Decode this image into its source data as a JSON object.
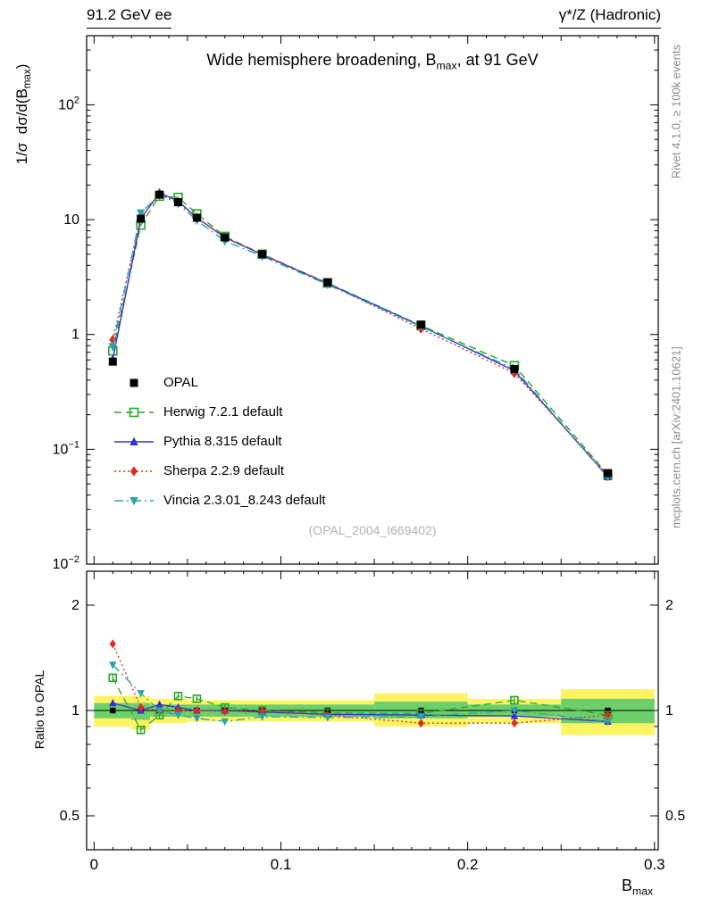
{
  "header": {
    "left": "91.2 GeV ee",
    "right": "γ*/Z (Hadronic)"
  },
  "plot_title": {
    "pre": "Wide hemisphere broadening, B",
    "sub": "max",
    "post": ", at 91 GeV"
  },
  "axes": {
    "main_ylabel": {
      "pre": "1/σ  dσ/d(B",
      "sub": "max",
      "post": ")"
    },
    "ratio_ylabel": "Ratio to OPAL",
    "xlabel": {
      "pre": "B",
      "sub": "max"
    }
  },
  "side_notes": {
    "rivet": "Rivet 4.1.0, ≥ 100k events",
    "mcplots": "mcplots.cern.ch [arXiv:2401.10621]"
  },
  "watermark": "(OPAL_2004_I669402)",
  "chart_data": {
    "type": "line",
    "title": "Wide hemisphere broadening, B_max, at 91 GeV",
    "xlabel": "B_max",
    "ylabel_main": "1/σ dσ/d(B_max)",
    "ylabel_ratio": "Ratio to OPAL",
    "x": [
      0.01,
      0.025,
      0.035,
      0.045,
      0.055,
      0.07,
      0.09,
      0.125,
      0.175,
      0.225,
      0.275
    ],
    "bin_edges": [
      0,
      0.02,
      0.03,
      0.04,
      0.05,
      0.06,
      0.08,
      0.1,
      0.15,
      0.2,
      0.25,
      0.3
    ],
    "xlim": [
      -0.004,
      0.302
    ],
    "xticks": [
      {
        "v": 0,
        "label": "0"
      },
      {
        "v": 0.1,
        "label": "0.1"
      },
      {
        "v": 0.2,
        "label": "0.2"
      },
      {
        "v": 0.3,
        "label": "0.3"
      }
    ],
    "main": {
      "ylim": [
        0.01,
        400
      ],
      "yticks": [
        {
          "v": 100,
          "base": "10",
          "exp": "2"
        },
        {
          "v": 10,
          "base": "10",
          "exp": ""
        },
        {
          "v": 1,
          "base": "1",
          "exp": ""
        },
        {
          "v": 0.1,
          "base": "10",
          "exp": "−1"
        },
        {
          "v": 0.01,
          "base": "10",
          "exp": "−2"
        }
      ]
    },
    "ratio": {
      "ylim": [
        0.4,
        2.5
      ],
      "yticks": [
        {
          "v": 2,
          "label": "2"
        },
        {
          "v": 1,
          "label": "1"
        },
        {
          "v": 0.5,
          "label": "0.5"
        }
      ],
      "minor_ticks": [
        0.4,
        0.6,
        0.7,
        0.8,
        0.9
      ],
      "bands": {
        "yellow_color": "#fdf463",
        "green_color": "#6ccf6c",
        "yellow_lo": [
          0.9,
          0.88,
          0.92,
          0.92,
          0.93,
          0.93,
          0.93,
          0.93,
          0.9,
          0.92,
          0.85
        ],
        "yellow_hi": [
          1.1,
          1.1,
          1.08,
          1.08,
          1.07,
          1.07,
          1.07,
          1.07,
          1.12,
          1.08,
          1.15
        ],
        "green_lo": [
          0.95,
          0.94,
          0.96,
          0.96,
          0.96,
          0.96,
          0.96,
          0.96,
          0.95,
          0.96,
          0.92
        ],
        "green_hi": [
          1.05,
          1.05,
          1.04,
          1.04,
          1.04,
          1.04,
          1.04,
          1.04,
          1.06,
          1.04,
          1.08
        ]
      }
    },
    "series": [
      {
        "name": "OPAL",
        "role": "data",
        "color": "#000000",
        "marker": "square-filled",
        "dash": "none",
        "main": [
          0.58,
          10.2,
          16.5,
          14.2,
          10.4,
          7.0,
          5.0,
          2.85,
          1.22,
          0.5,
          0.062
        ]
      },
      {
        "name": "Herwig 7.2.1 default",
        "role": "mc",
        "color": "#2ca52c",
        "marker": "square-open",
        "dash": "dashed",
        "ratio": [
          1.24,
          0.88,
          0.97,
          1.1,
          1.08,
          1.02,
          1.0,
          0.985,
          0.98,
          1.07,
          0.97
        ]
      },
      {
        "name": "Pythia 8.315 default",
        "role": "mc",
        "color": "#3333cc",
        "marker": "triangle-up",
        "dash": "solid",
        "ratio": [
          1.05,
          1.0,
          1.04,
          1.02,
          1.0,
          1.0,
          0.99,
          0.975,
          0.97,
          0.965,
          0.93
        ]
      },
      {
        "name": "Sherpa 2.2.9 default",
        "role": "mc",
        "color": "#e02a20",
        "marker": "diamond",
        "dash": "dotted",
        "ratio": [
          1.55,
          1.02,
          1.0,
          1.0,
          1.0,
          0.995,
          1.0,
          0.97,
          0.92,
          0.92,
          0.97
        ]
      },
      {
        "name": "Vincia 2.3.01_8.243 default",
        "role": "mc",
        "color": "#2ba3ab",
        "marker": "triangle-down",
        "dash": "dashdot",
        "ratio": [
          1.35,
          1.12,
          1.0,
          0.97,
          0.95,
          0.93,
          0.96,
          0.955,
          0.96,
          1.0,
          0.93
        ]
      }
    ]
  }
}
